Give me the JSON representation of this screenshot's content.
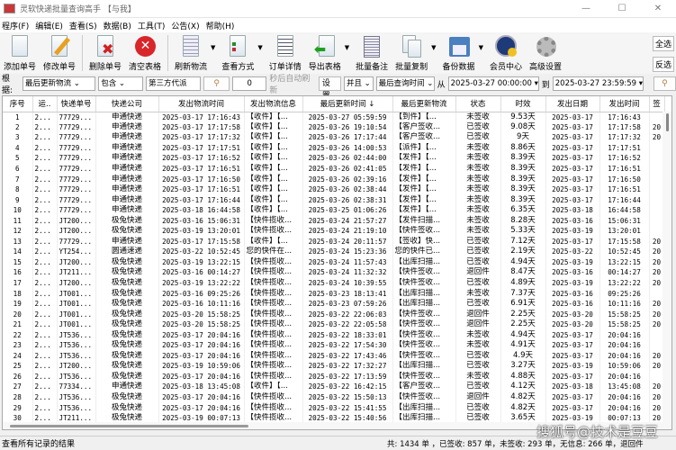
{
  "window": {
    "title": "灵软快递批量查询高手 【与我】",
    "minimize": "—",
    "maximize": "☐",
    "close": "✕"
  },
  "menu": [
    "程序(F)",
    "编辑(E)",
    "查看(S)",
    "数据(B)",
    "工具(T)",
    "公告(X)",
    "帮助(H)"
  ],
  "toolbar": [
    {
      "label": "添加单号",
      "icon": "add-document-icon",
      "dropdown": false
    },
    {
      "label": "修改单号",
      "icon": "edit-pencil-icon",
      "dropdown": false,
      "sep_after": true
    },
    {
      "label": "删除单号",
      "icon": "delete-document-icon",
      "dropdown": false
    },
    {
      "label": "清空表格",
      "icon": "clear-red-x-icon",
      "dropdown": false,
      "sep_after": true
    },
    {
      "label": "刷新物流",
      "icon": "refresh-document-icon",
      "dropdown": true
    },
    {
      "label": "查看方式",
      "icon": "view-list-icon",
      "dropdown": true
    },
    {
      "label": "订单详情",
      "icon": "order-detail-icon",
      "dropdown": false
    },
    {
      "label": "导出表格",
      "icon": "export-arrow-icon",
      "dropdown": true
    },
    {
      "label": "批量备注",
      "icon": "batch-note-icon",
      "dropdown": false
    },
    {
      "label": "批量复制",
      "icon": "batch-copy-icon",
      "dropdown": true
    },
    {
      "label": "备份数据",
      "icon": "backup-disk-icon",
      "dropdown": true
    },
    {
      "label": "会员中心",
      "icon": "member-clock-icon",
      "dropdown": false
    },
    {
      "label": "高级设置",
      "icon": "gear-icon",
      "dropdown": false
    }
  ],
  "side_buttons": {
    "select_all": "全选",
    "invert": "反选"
  },
  "filter": {
    "label": "根据:",
    "field": "最后更新物流",
    "op": "包含",
    "value": "第三方代派",
    "refresh_seconds": "0",
    "auto_refresh_label": "秒后自动刷新",
    "settings": "设置",
    "logic": "并且",
    "time_field": "最后查询时间",
    "from_label": "从",
    "from": "2025-03-27 00:00:00",
    "to_label": "到",
    "to": "2025-03-27 23:59:59"
  },
  "table": {
    "columns": [
      "序号",
      "运..",
      "快递单号",
      "快递公司",
      "发出物流时间",
      "发出物流信息",
      "最后更新时间 ↓",
      "最后更新物流",
      "状态",
      "时效",
      "发出日期",
      "发出时间",
      "签"
    ],
    "rows": [
      [
        "1",
        "2...",
        "77729...",
        "申通快递",
        "2025-03-17 17:16:43",
        "【收件】【...",
        "2025-03-27 05:59:59",
        "【到件】【...",
        "未签收",
        "9.53天",
        "2025-03-17",
        "17:16:43",
        ""
      ],
      [
        "2",
        "2...",
        "77729...",
        "申通快递",
        "2025-03-17 17:17:58",
        "【收件】【...",
        "2025-03-26 19:10:54",
        "【客户签收...",
        "已签收",
        "9.08天",
        "2025-03-17",
        "17:17:58",
        "20"
      ],
      [
        "3",
        "2...",
        "77729...",
        "申通快递",
        "2025-03-17 17:17:32",
        "【收件】【...",
        "2025-03-26 17:17:44",
        "【客户签收...",
        "已签收",
        "9天",
        "2025-03-17",
        "17:17:32",
        "20"
      ],
      [
        "4",
        "2...",
        "77729...",
        "申通快递",
        "2025-03-17 17:17:51",
        "【收件】【...",
        "2025-03-26 14:00:53",
        "【派件】【...",
        "未签收",
        "8.86天",
        "2025-03-17",
        "17:17:51",
        ""
      ],
      [
        "5",
        "2...",
        "77729...",
        "申通快递",
        "2025-03-17 17:16:52",
        "【收件】【...",
        "2025-03-26 02:44:00",
        "【发件】【...",
        "未签收",
        "8.39天",
        "2025-03-17",
        "17:16:52",
        ""
      ],
      [
        "6",
        "2...",
        "77729...",
        "申通快递",
        "2025-03-17 17:16:51",
        "【收件】【...",
        "2025-03-26 02:41:05",
        "【发件】【...",
        "未签收",
        "8.39天",
        "2025-03-17",
        "17:16:51",
        ""
      ],
      [
        "7",
        "2...",
        "77729...",
        "申通快递",
        "2025-03-17 17:16:50",
        "【收件】【...",
        "2025-03-26 02:39:16",
        "【发件】【...",
        "未签收",
        "8.39天",
        "2025-03-17",
        "17:16:50",
        ""
      ],
      [
        "8",
        "2...",
        "77729...",
        "申通快递",
        "2025-03-17 17:16:51",
        "【收件】【...",
        "2025-03-26 02:38:44",
        "【发件】【...",
        "未签收",
        "8.39天",
        "2025-03-17",
        "17:16:51",
        ""
      ],
      [
        "9",
        "2...",
        "77729...",
        "申通快递",
        "2025-03-17 17:16:44",
        "【收件】【...",
        "2025-03-26 02:38:31",
        "【发件】【...",
        "未签收",
        "8.39天",
        "2025-03-17",
        "17:16:44",
        ""
      ],
      [
        "10",
        "2...",
        "77729...",
        "申通快递",
        "2025-03-18 16:44:58",
        "【收件】【...",
        "2025-03-25 01:06:26",
        "【发件】【...",
        "未签收",
        "6.35天",
        "2025-03-18",
        "16:44:58",
        ""
      ],
      [
        "11",
        "2...",
        "JT200...",
        "极兔快递",
        "2025-03-16 15:06:31",
        "【快件揽收...",
        "2025-03-24 21:57:27",
        "【发件扫描...",
        "未签收",
        "8.28天",
        "2025-03-16",
        "15:06:31",
        ""
      ],
      [
        "12",
        "2...",
        "JT200...",
        "极兔快递",
        "2025-03-19 13:20:01",
        "【快件揽收...",
        "2025-03-24 21:19:10",
        "【快件签收...",
        "未签收",
        "5.33天",
        "2025-03-19",
        "13:20:01",
        ""
      ],
      [
        "13",
        "2...",
        "77729...",
        "申通快递",
        "2025-03-17 17:15:58",
        "【收件】【...",
        "2025-03-24 20:11:57",
        "【签收】快...",
        "已签收",
        "7.12天",
        "2025-03-17",
        "17:15:58",
        "20"
      ],
      [
        "14",
        "2...",
        "YT254...",
        "圆通速递",
        "2025-03-22 10:52:45",
        "您的快件在...",
        "2025-03-24 15:23:36",
        "您的快件已...",
        "已签收",
        "2.19天",
        "2025-03-22",
        "10:52:45",
        "20"
      ],
      [
        "15",
        "2...",
        "JT200...",
        "极兔快递",
        "2025-03-19 13:22:15",
        "【快件揽收...",
        "2025-03-24 11:57:43",
        "【出库扫描...",
        "已签收",
        "4.94天",
        "2025-03-19",
        "13:22:15",
        "20"
      ],
      [
        "16",
        "2...",
        "JT211...",
        "极兔快递",
        "2025-03-16 00:14:27",
        "【快件揽收...",
        "2025-03-24 11:32:32",
        "【快件签收...",
        "退回件",
        "8.47天",
        "2025-03-16",
        "00:14:27",
        "20"
      ],
      [
        "17",
        "2...",
        "JT200...",
        "极兔快递",
        "2025-03-19 13:22:22",
        "【快件揽收...",
        "2025-03-24 10:39:55",
        "【快件签收...",
        "已签收",
        "4.89天",
        "2025-03-19",
        "13:22:22",
        "20"
      ],
      [
        "18",
        "2...",
        "JT001...",
        "极兔快递",
        "2025-03-16 09:25:26",
        "【快件揽收...",
        "2025-03-23 18:13:41",
        "【出库扫描...",
        "未签收",
        "7.37天",
        "2025-03-16",
        "09:25:26",
        ""
      ],
      [
        "19",
        "2...",
        "JT001...",
        "极兔快递",
        "2025-03-16 10:11:16",
        "【快件揽收...",
        "2025-03-23 07:59:26",
        "【出库扫描...",
        "已签收",
        "6.91天",
        "2025-03-16",
        "10:11:16",
        "20"
      ],
      [
        "20",
        "2...",
        "JT001...",
        "极兔快递",
        "2025-03-20 15:58:25",
        "【快件揽收...",
        "2025-03-22 22:06:03",
        "【快件签收...",
        "退回件",
        "2.25天",
        "2025-03-20",
        "15:58:25",
        "20"
      ],
      [
        "21",
        "2...",
        "JT001...",
        "极兔快递",
        "2025-03-20 15:58:25",
        "【快件揽收...",
        "2025-03-22 22:05:58",
        "【快件签收...",
        "退回件",
        "2.25天",
        "2025-03-20",
        "15:58:25",
        "20"
      ],
      [
        "22",
        "2...",
        "JT536...",
        "极兔快递",
        "2025-03-17 20:04:16",
        "【快件揽收...",
        "2025-03-22 18:33:01",
        "【快件签收...",
        "未签收",
        "4.94天",
        "2025-03-17",
        "20:04:16",
        ""
      ],
      [
        "23",
        "2...",
        "JT536...",
        "极兔快递",
        "2025-03-17 20:04:16",
        "【快件揽收...",
        "2025-03-22 17:54:30",
        "【快件签收...",
        "未签收",
        "4.91天",
        "2025-03-17",
        "20:04:16",
        ""
      ],
      [
        "24",
        "2...",
        "JT536...",
        "极兔快递",
        "2025-03-17 20:04:16",
        "【快件揽收...",
        "2025-03-22 17:43:46",
        "【快件签收...",
        "已签收",
        "4.9天",
        "2025-03-17",
        "20:04:16",
        "20"
      ],
      [
        "25",
        "2...",
        "JT200...",
        "极兔快递",
        "2025-03-19 10:59:06",
        "【快件揽收...",
        "2025-03-22 17:32:27",
        "【出库扫描...",
        "已签收",
        "3.27天",
        "2025-03-19",
        "10:59:06",
        "20"
      ],
      [
        "26",
        "2...",
        "JT536...",
        "极兔快递",
        "2025-03-17 20:04:16",
        "【快件揽收...",
        "2025-03-22 17:13:59",
        "【快件签收...",
        "未签收",
        "4.88天",
        "2025-03-17",
        "20:04:16",
        ""
      ],
      [
        "27",
        "2...",
        "77334...",
        "申通快递",
        "2025-03-18 13:45:08",
        "【收件】【...",
        "2025-03-22 16:42:15",
        "【客户签收...",
        "已签收",
        "4.12天",
        "2025-03-18",
        "13:45:08",
        "20"
      ],
      [
        "28",
        "2...",
        "JT536...",
        "极兔快递",
        "2025-03-17 20:04:16",
        "【快件揽收...",
        "2025-03-22 15:50:13",
        "【快件签收...",
        "退回件",
        "4.82天",
        "2025-03-17",
        "20:04:16",
        "20"
      ],
      [
        "29",
        "2...",
        "JT536...",
        "极兔快递",
        "2025-03-17 20:04:16",
        "【快件揽收...",
        "2025-03-22 15:41:55",
        "【出库扫描...",
        "已签收",
        "4.82天",
        "2025-03-17",
        "20:04:16",
        "20"
      ],
      [
        "30",
        "2...",
        "JT211...",
        "极兔快递",
        "2025-03-19 00:07:13",
        "【快件揽收...",
        "2025-03-22 15:40:56",
        "【出库扫描...",
        "已签收",
        "3.65天",
        "2025-03-19",
        "00:07:13",
        "20"
      ]
    ]
  },
  "status": {
    "left": "查看所有记录的结果",
    "right": "共: 1434 单 ，已签收:  857 单，未签收:  293 单，无信息:  266 单，退回件"
  },
  "watermark": "搜狐号@技术是豆豆"
}
